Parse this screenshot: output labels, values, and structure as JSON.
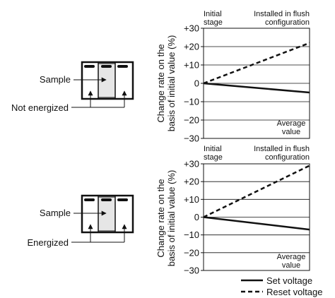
{
  "diagrams": [
    {
      "sample_label": "Sample",
      "condition_label": "Not energized"
    },
    {
      "sample_label": "Sample",
      "condition_label": "Energized"
    }
  ],
  "chart_data": [
    {
      "type": "line",
      "ylabel_line1": "Change rate on the",
      "ylabel_line2": "basis of initial value (%)",
      "x_start_label_line1": "Initial",
      "x_start_label_line2": "stage",
      "x_end_label_line1": "Installed in flush",
      "x_end_label_line2": "configuration",
      "annotation_line1": "Average",
      "annotation_line2": "value",
      "y_ticks": [
        "+30",
        "+20",
        "+10",
        "0",
        "−10",
        "−20",
        "−30"
      ],
      "ylim": [
        -30,
        30
      ],
      "grid": true,
      "x": [
        0,
        1
      ],
      "series": [
        {
          "name": "Set voltage",
          "style": "solid",
          "values": [
            0,
            -5
          ]
        },
        {
          "name": "Reset voltage",
          "style": "dashed",
          "values": [
            0,
            22
          ]
        }
      ]
    },
    {
      "type": "line",
      "ylabel_line1": "Change rate on the",
      "ylabel_line2": "basis of initial value (%)",
      "x_start_label_line1": "Initial",
      "x_start_label_line2": "stage",
      "x_end_label_line1": "Installed in flush",
      "x_end_label_line2": "configuration",
      "annotation_line1": "Average",
      "annotation_line2": "value",
      "y_ticks": [
        "+30",
        "+20",
        "+10",
        "0",
        "−10",
        "−20",
        "−30"
      ],
      "ylim": [
        -30,
        30
      ],
      "grid": true,
      "x": [
        0,
        1
      ],
      "series": [
        {
          "name": "Set voltage",
          "style": "solid",
          "values": [
            0,
            -7
          ]
        },
        {
          "name": "Reset voltage",
          "style": "dashed",
          "values": [
            0,
            29
          ]
        }
      ]
    }
  ],
  "legend": {
    "placement": "bottom-right",
    "items": [
      {
        "label": "Set voltage",
        "style": "solid"
      },
      {
        "label": "Reset voltage",
        "style": "dashed"
      }
    ]
  }
}
